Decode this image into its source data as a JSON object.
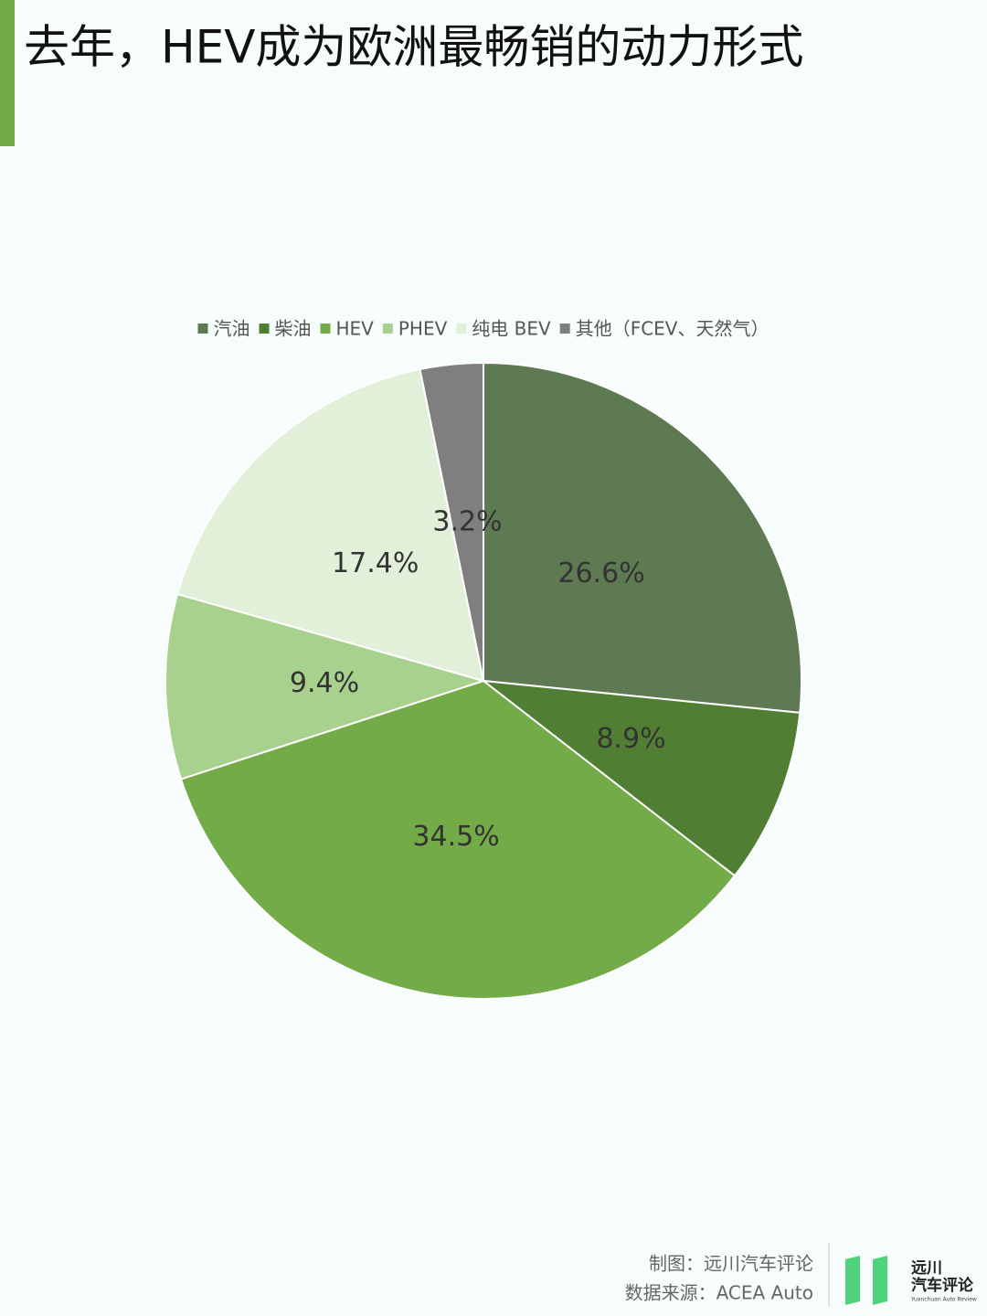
{
  "chart_data": {
    "type": "pie",
    "title": "去年，HEV成为欧洲最畅销的动力形式",
    "categories": [
      "汽油",
      "柴油",
      "HEV",
      "PHEV",
      "纯电 BEV",
      "其他（FCEV、天然气）"
    ],
    "values": [
      26.6,
      8.9,
      34.5,
      9.4,
      17.4,
      3.2
    ],
    "value_labels": [
      "26.6%",
      "8.9%",
      "34.5%",
      "9.4%",
      "17.4%",
      "3.2%"
    ],
    "colors": [
      "#5e7a52",
      "#507f33",
      "#72ab48",
      "#a9d18e",
      "#e2efd9",
      "#7f7f7f"
    ],
    "legend": "top"
  },
  "footer": {
    "credit": "制图：远川汽车评论",
    "source": "数据来源：ACEA Auto"
  },
  "logo": {
    "name": "远川",
    "sub": "汽车评论",
    "english": "Yuanchuan Auto Review"
  }
}
